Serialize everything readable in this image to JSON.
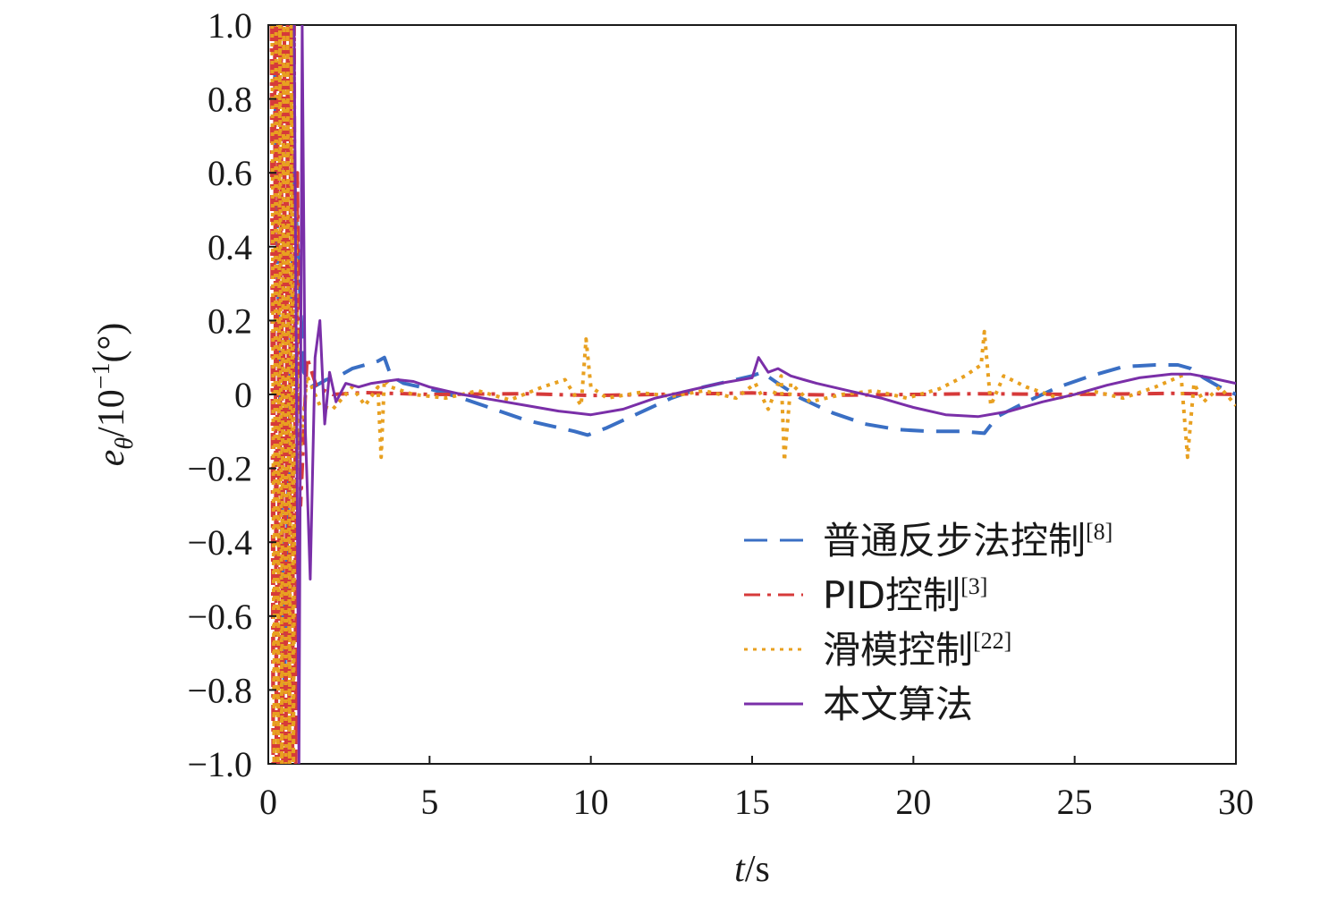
{
  "chart_data": {
    "type": "line",
    "xlabel": {
      "var": "t",
      "unit": "/s"
    },
    "ylabel": {
      "var": "e",
      "sub": "θ",
      "unit": "/10",
      "exp": "−1",
      "tail": "(°)"
    },
    "xlim": [
      0,
      30
    ],
    "ylim": [
      -1.0,
      1.0
    ],
    "x_ticks": [
      0,
      5,
      10,
      15,
      20,
      25,
      30
    ],
    "x_tick_labels": [
      "0",
      "5",
      "10",
      "15",
      "20",
      "25",
      "30"
    ],
    "y_ticks": [
      1.0,
      0.8,
      0.6,
      0.4,
      0.2,
      0,
      -0.2,
      -0.4,
      -0.6,
      -0.8,
      -1.0
    ],
    "y_tick_labels": [
      "1.0",
      "0.8",
      "0.6",
      "0.4",
      "0.2",
      "0",
      "−0.2",
      "−0.4",
      "−0.6",
      "−0.8",
      "−1.0"
    ],
    "grid": false,
    "legend_position": "bottom-right",
    "series": [
      {
        "name": "普通反步法控制",
        "ref": "[8]",
        "color": "#3a6fc4",
        "style": "dashed",
        "x": [
          0.2,
          0.5,
          0.8,
          1.1,
          1.4,
          1.8,
          2.2,
          2.6,
          3.0,
          3.4,
          3.6,
          3.8,
          4.2,
          5.0,
          6.0,
          7.0,
          8.0,
          9.0,
          9.5,
          9.9,
          10.5,
          11.5,
          12.5,
          13.5,
          14.5,
          15.0,
          15.3,
          15.8,
          16.5,
          17.5,
          18.5,
          19.5,
          20.5,
          21.5,
          22.2,
          22.6,
          23.5,
          24.5,
          25.5,
          26.5,
          27.5,
          28.2,
          28.6,
          29.0,
          29.5,
          30.0
        ],
        "y": [
          0.9,
          -0.8,
          0.6,
          0.06,
          0.02,
          0.04,
          0.05,
          0.07,
          0.08,
          0.09,
          0.1,
          0.05,
          0.03,
          0.015,
          -0.01,
          -0.04,
          -0.07,
          -0.09,
          -0.1,
          -0.11,
          -0.09,
          -0.05,
          -0.01,
          0.02,
          0.04,
          0.05,
          0.06,
          0.03,
          -0.01,
          -0.05,
          -0.08,
          -0.095,
          -0.1,
          -0.1,
          -0.105,
          -0.06,
          -0.02,
          0.02,
          0.05,
          0.075,
          0.08,
          0.08,
          0.07,
          0.045,
          0.02,
          0.0
        ]
      },
      {
        "name": "PID控制",
        "ref": "[3]",
        "color": "#d63a3a",
        "style": "dashdot",
        "x": [
          0.1,
          0.15,
          0.2,
          0.25,
          0.3,
          0.35,
          0.4,
          0.45,
          0.5,
          0.55,
          0.6,
          0.65,
          0.7,
          0.75,
          0.8,
          0.85,
          0.9,
          1.0,
          1.2,
          1.5,
          2.0,
          3.0,
          5.0,
          8.0,
          10.0,
          12.0,
          15.0,
          16.0,
          18.0,
          20.0,
          22.0,
          25.0,
          28.0,
          30.0
        ],
        "y": [
          1.0,
          -1.0,
          1.0,
          -1.0,
          1.0,
          -1.0,
          1.0,
          -1.0,
          1.0,
          -1.0,
          1.0,
          -1.0,
          1.0,
          -1.0,
          1.0,
          -1.0,
          0.6,
          -0.3,
          0.1,
          0.02,
          0.0,
          0.005,
          0.0,
          0.002,
          -0.003,
          0.0,
          0.004,
          0.0,
          -0.002,
          0.0,
          0.002,
          0.0,
          0.003,
          0.0
        ]
      },
      {
        "name": "滑模控制",
        "ref": "[22]",
        "color": "#e8a020",
        "style": "dotted",
        "x": [
          0.12,
          0.18,
          0.24,
          0.3,
          0.36,
          0.42,
          0.48,
          0.54,
          0.6,
          0.66,
          0.72,
          0.78,
          0.84,
          0.95,
          1.2,
          1.6,
          2.0,
          2.6,
          3.0,
          3.4,
          3.5,
          3.6,
          3.8,
          4.5,
          5.5,
          6.5,
          7.5,
          8.5,
          9.2,
          9.7,
          9.85,
          10.0,
          10.5,
          11.5,
          12.5,
          13.5,
          14.5,
          15.1,
          15.5,
          15.9,
          16.0,
          16.2,
          16.8,
          17.8,
          18.8,
          19.8,
          20.8,
          21.6,
          22.1,
          22.2,
          22.4,
          22.8,
          23.5,
          24.5,
          25.5,
          26.5,
          27.5,
          28.3,
          28.5,
          28.7,
          29.0,
          29.5,
          30.0
        ],
        "y": [
          1.0,
          -1.0,
          1.0,
          -1.0,
          1.0,
          -1.0,
          1.0,
          -1.0,
          1.0,
          -1.0,
          1.0,
          -1.0,
          0.5,
          -0.2,
          0.05,
          -0.03,
          -0.04,
          0.02,
          -0.03,
          0.02,
          -0.17,
          0.04,
          0.02,
          0.0,
          -0.01,
          0.01,
          -0.015,
          0.02,
          0.04,
          -0.03,
          0.15,
          0.02,
          -0.01,
          0.005,
          -0.005,
          0.01,
          -0.01,
          0.03,
          -0.04,
          0.05,
          -0.18,
          0.03,
          -0.02,
          0.0,
          0.01,
          -0.01,
          0.015,
          0.05,
          0.08,
          0.17,
          -0.03,
          0.05,
          0.02,
          -0.01,
          0.01,
          -0.01,
          0.02,
          0.05,
          -0.17,
          0.03,
          -0.02,
          0.02,
          -0.03
        ]
      },
      {
        "name": "本文算法",
        "color": "#7a2fa8",
        "style": "solid",
        "x": [
          0.8,
          0.95,
          1.05,
          1.15,
          1.3,
          1.45,
          1.6,
          1.75,
          1.9,
          2.1,
          2.4,
          2.8,
          3.2,
          3.6,
          4.0,
          4.5,
          5.0,
          6.0,
          7.0,
          8.0,
          9.0,
          10.0,
          11.0,
          12.0,
          13.0,
          14.0,
          15.0,
          15.2,
          15.5,
          15.8,
          16.2,
          16.6,
          17.0,
          18.0,
          19.0,
          20.0,
          21.0,
          22.0,
          23.0,
          24.0,
          25.0,
          26.0,
          27.0,
          28.0,
          28.6,
          29.2,
          30.0
        ],
        "y": [
          1.0,
          -1.0,
          1.0,
          -0.1,
          -0.5,
          0.1,
          0.2,
          -0.08,
          0.06,
          -0.02,
          0.03,
          0.02,
          0.03,
          0.035,
          0.04,
          0.035,
          0.02,
          0.0,
          -0.015,
          -0.03,
          -0.045,
          -0.055,
          -0.04,
          -0.01,
          0.01,
          0.03,
          0.045,
          0.1,
          0.06,
          0.07,
          0.05,
          0.04,
          0.03,
          0.01,
          -0.01,
          -0.035,
          -0.055,
          -0.06,
          -0.045,
          -0.02,
          0.0,
          0.025,
          0.045,
          0.055,
          0.055,
          0.045,
          0.03
        ]
      }
    ]
  }
}
